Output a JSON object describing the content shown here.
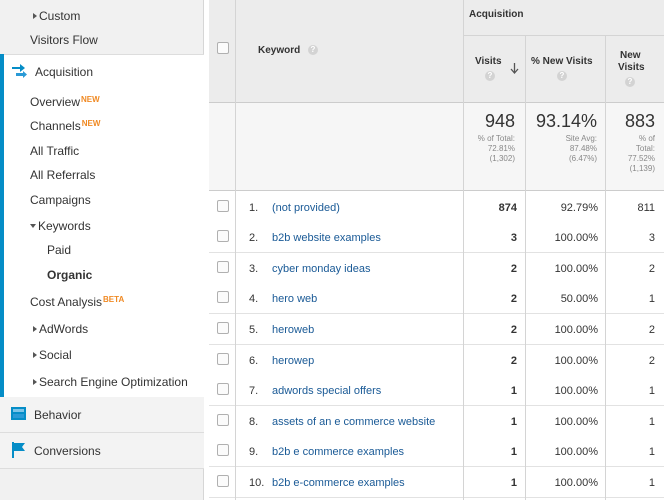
{
  "sidebar": {
    "custom": "Custom",
    "visitors_flow": "Visitors Flow",
    "acquisition": "Acquisition",
    "overview": "Overview",
    "overview_badge": "NEW",
    "channels": "Channels",
    "channels_badge": "NEW",
    "all_traffic": "All Traffic",
    "all_referrals": "All Referrals",
    "campaigns": "Campaigns",
    "keywords": "Keywords",
    "paid": "Paid",
    "organic": "Organic",
    "cost_analysis": "Cost Analysis",
    "cost_analysis_badge": "BETA",
    "adwords": "AdWords",
    "social": "Social",
    "seo": "Search Engine Optimization",
    "behavior": "Behavior",
    "conversions": "Conversions"
  },
  "table": {
    "group_header": "Acquisition",
    "col_keyword": "Keyword",
    "col_visits": "Visits",
    "col_new_visits_pct": "% New Visits",
    "col_new_visits_1": "New",
    "col_new_visits_2": "Visits",
    "help": "?",
    "summary": {
      "visits": "948",
      "visits_sub1": "% of Total:",
      "visits_sub2": "72.81%",
      "visits_sub3": "(1,302)",
      "new_pct": "93.14%",
      "new_pct_sub1": "Site Avg:",
      "new_pct_sub2": "87.48%",
      "new_pct_sub3": "(6.47%)",
      "new_visits": "883",
      "new_visits_sub1": "% of",
      "new_visits_sub2": "Total:",
      "new_visits_sub3": "77.52%",
      "new_visits_sub4": "(1,139)"
    },
    "rows": [
      {
        "idx": "1.",
        "keyword": "(not provided)",
        "visits": "874",
        "new_pct": "92.79%",
        "new_visits": "811"
      },
      {
        "idx": "2.",
        "keyword": "b2b website examples",
        "visits": "3",
        "new_pct": "100.00%",
        "new_visits": "3"
      },
      {
        "idx": "3.",
        "keyword": "cyber monday ideas",
        "visits": "2",
        "new_pct": "100.00%",
        "new_visits": "2"
      },
      {
        "idx": "4.",
        "keyword": "hero web",
        "visits": "2",
        "new_pct": "50.00%",
        "new_visits": "1"
      },
      {
        "idx": "5.",
        "keyword": "heroweb",
        "visits": "2",
        "new_pct": "100.00%",
        "new_visits": "2"
      },
      {
        "idx": "6.",
        "keyword": "herowep",
        "visits": "2",
        "new_pct": "100.00%",
        "new_visits": "2"
      },
      {
        "idx": "7.",
        "keyword": "adwords special offers",
        "visits": "1",
        "new_pct": "100.00%",
        "new_visits": "1"
      },
      {
        "idx": "8.",
        "keyword": "assets of an e commerce website",
        "visits": "1",
        "new_pct": "100.00%",
        "new_visits": "1"
      },
      {
        "idx": "9.",
        "keyword": "b2b e commerce examples",
        "visits": "1",
        "new_pct": "100.00%",
        "new_visits": "1"
      },
      {
        "idx": "10.",
        "keyword": "b2b e-commerce examples",
        "visits": "1",
        "new_pct": "100.00%",
        "new_visits": "1"
      }
    ]
  },
  "colors": {
    "accent": "#058dc7",
    "link": "#1a5a96",
    "badge": "#f08a24"
  }
}
